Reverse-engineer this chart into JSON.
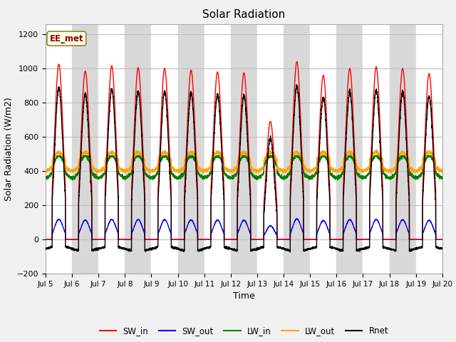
{
  "title": "Solar Radiation",
  "xlabel": "Time",
  "ylabel": "Solar Radiation (W/m2)",
  "ylim": [
    -200,
    1260
  ],
  "n_days": 15,
  "annotation": "EE_met",
  "legend": [
    "SW_in",
    "SW_out",
    "LW_in",
    "LW_out",
    "Rnet"
  ],
  "colors": [
    "red",
    "blue",
    "green",
    "orange",
    "black"
  ],
  "background_color": "#f0f0f0",
  "plot_bg": "#e8e8e8",
  "yticks": [
    -200,
    0,
    200,
    400,
    600,
    800,
    1000,
    1200
  ],
  "xtick_labels": [
    "Jul 5",
    "Jul 6",
    "Jul 7",
    "Jul 8",
    "Jul 9",
    "Jul 10",
    "Jul 11",
    "Jul 12",
    "Jul 13",
    "Jul 14",
    "Jul 15",
    "Jul 16",
    "Jul 17",
    "Jul 18",
    "Jul 19",
    "Jul 20"
  ],
  "points_per_day": 288,
  "day_peaks_SW": [
    1025,
    985,
    1015,
    1005,
    1000,
    990,
    980,
    975,
    690,
    1040,
    960,
    1000,
    1010,
    1000,
    970
  ],
  "figsize": [
    6.4,
    4.8
  ],
  "dpi": 100
}
